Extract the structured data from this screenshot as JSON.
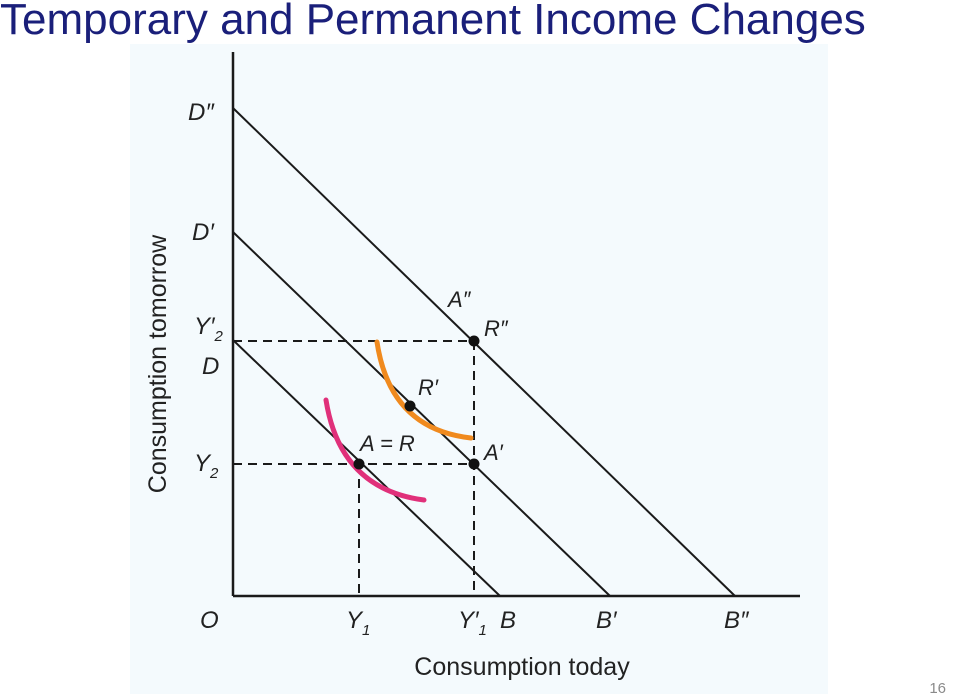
{
  "slide": {
    "title": "Temporary and Permanent Income Changes",
    "page_number": "16"
  },
  "diagram": {
    "x_axis_title": "Consumption today",
    "y_axis_title": "Consumption tomorrow",
    "origin_label": "O",
    "x_labels": {
      "y1": "Y",
      "y1_sub": "1",
      "y1p": "Y′",
      "y1p_sub": "1",
      "b": "B",
      "bp": "B′",
      "bpp": "B″"
    },
    "y_labels": {
      "dpp": "D″",
      "dp": "D′",
      "y2p": "Y′",
      "y2p_sub": "2",
      "d": "D",
      "y2": "Y",
      "y2_sub": "2"
    },
    "point_labels": {
      "a_eq_r": "A = R",
      "rp": "R′",
      "ap": "A′",
      "app": "A″",
      "rpp": "R″"
    },
    "colors": {
      "curve_initial": "#e0307a",
      "curve_temporary": "#f08a1e",
      "line": "#1a1a1a"
    }
  }
}
